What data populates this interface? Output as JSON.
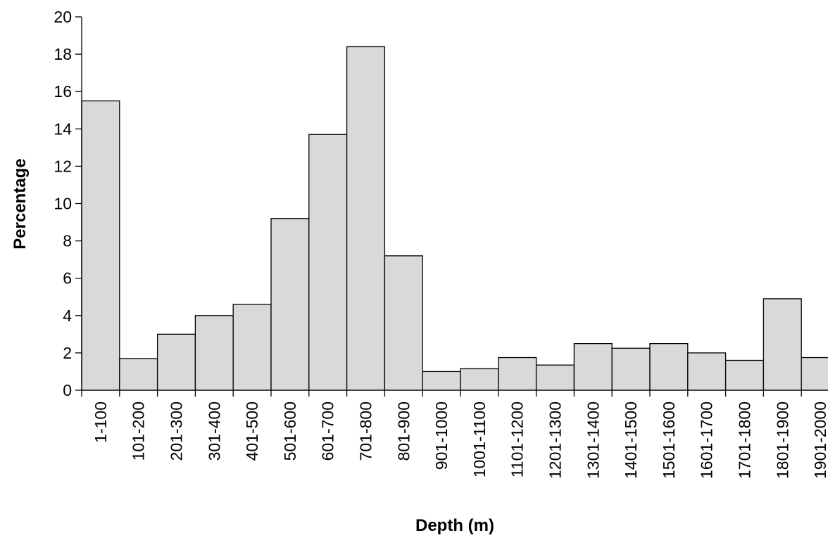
{
  "chart_data": {
    "type": "bar",
    "title": "",
    "xlabel": "Depth (m)",
    "ylabel": "Percentage",
    "ylim": [
      0,
      20
    ],
    "yticks": [
      0,
      2,
      4,
      6,
      8,
      10,
      12,
      14,
      16,
      18,
      20
    ],
    "grid": false,
    "legend": "none",
    "bar_fill": "#d9d9d9",
    "bar_stroke": "#000000",
    "categories": [
      "1-100",
      "101-200",
      "201-300",
      "301-400",
      "401-500",
      "501-600",
      "601-700",
      "701-800",
      "801-900",
      "901-1000",
      "1001-1100",
      "1101-1200",
      "1201-1300",
      "1301-1400",
      "1401-1500",
      "1501-1600",
      "1601-1700",
      "1701-1800",
      "1801-1900",
      "1901-2000"
    ],
    "values": [
      15.5,
      1.7,
      3.0,
      4.0,
      4.6,
      9.2,
      13.7,
      18.4,
      7.2,
      1.0,
      1.15,
      1.75,
      1.35,
      2.5,
      2.25,
      2.5,
      2.0,
      1.6,
      4.9,
      1.75
    ]
  }
}
